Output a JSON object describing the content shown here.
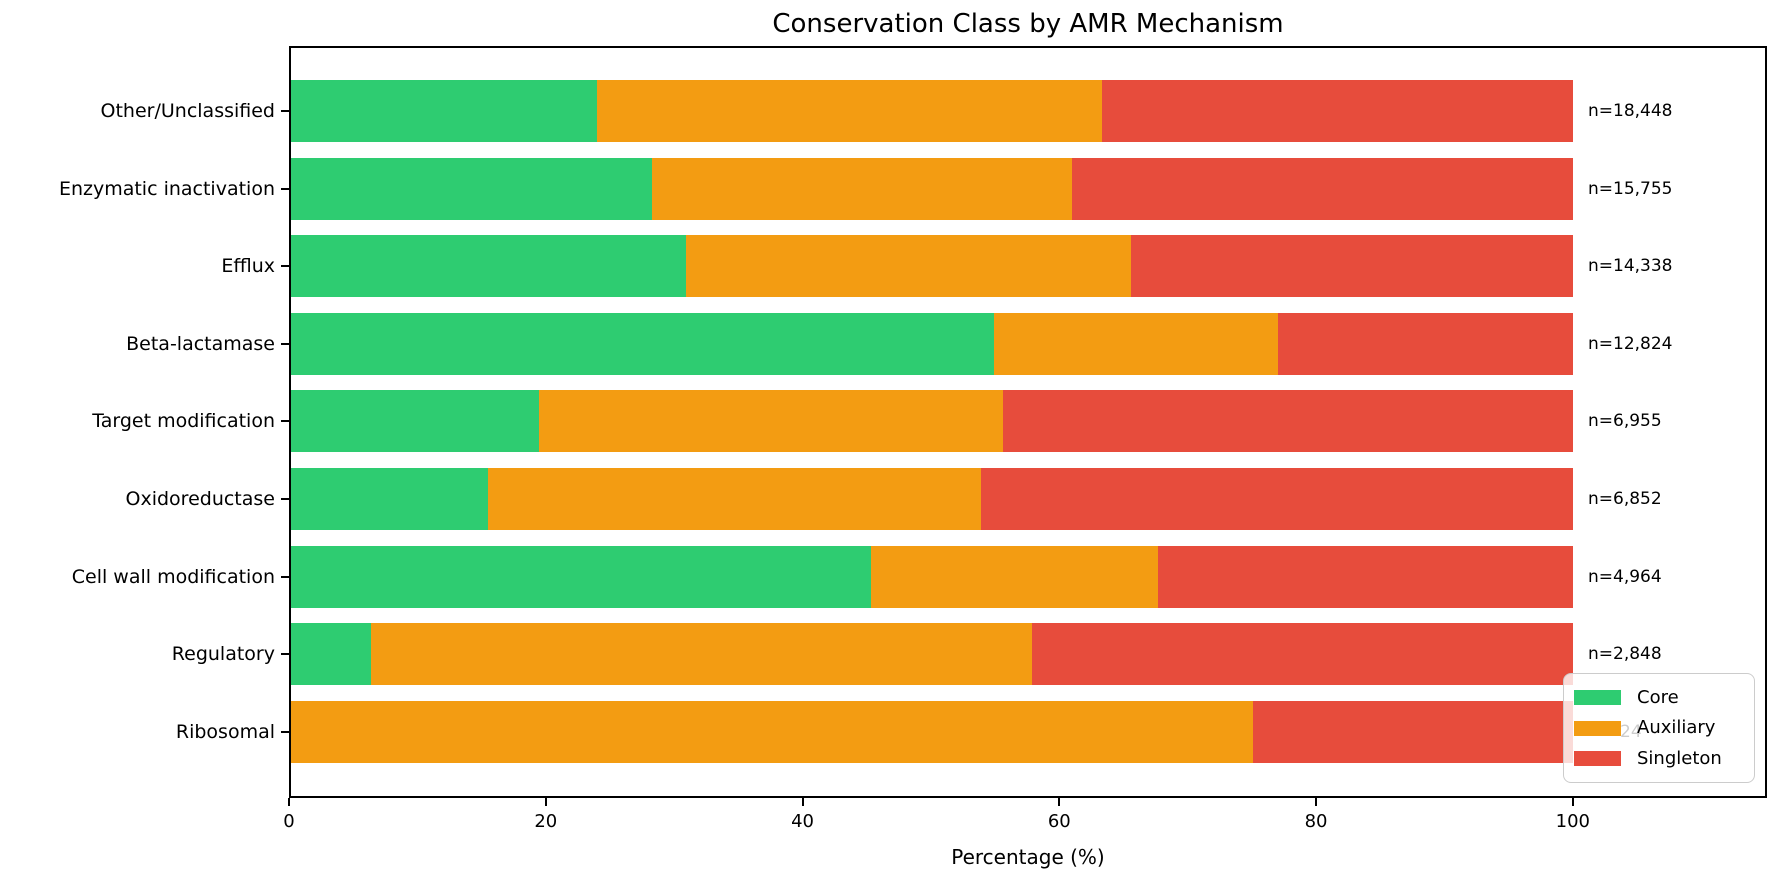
{
  "chart_data": {
    "type": "bar",
    "orientation": "horizontal",
    "stacked": true,
    "title": "Conservation Class by AMR Mechanism",
    "xlabel": "Percentage (%)",
    "ylabel": "",
    "xlim": [
      0,
      115
    ],
    "xticks": [
      "0",
      "20",
      "40",
      "60",
      "80",
      "100"
    ],
    "xtick_values": [
      0,
      20,
      40,
      60,
      80,
      100
    ],
    "grid": false,
    "legend_position": "lower-right-inside",
    "categories": [
      "Other/Unclassified",
      "Enzymatic inactivation",
      "Efflux",
      "Beta-lactamase",
      "Target modification",
      "Oxidoreductase",
      "Cell wall modification",
      "Regulatory",
      "Ribosomal"
    ],
    "series": [
      {
        "name": "Core",
        "color": "#2ecc71",
        "values": [
          24.0,
          28.3,
          30.9,
          54.9,
          19.5,
          15.5,
          45.3,
          6.4,
          0.0
        ]
      },
      {
        "name": "Auxiliary",
        "color": "#f39c12",
        "values": [
          39.3,
          32.7,
          34.7,
          22.1,
          36.1,
          38.4,
          22.4,
          51.5,
          75.1
        ]
      },
      {
        "name": "Singleton",
        "color": "#e74c3c",
        "values": [
          36.7,
          39.0,
          34.4,
          23.0,
          44.4,
          46.1,
          32.3,
          42.1,
          24.9
        ]
      }
    ],
    "n_labels": [
      "n=18,448",
      "n=15,755",
      "n=14,338",
      "n=12,824",
      "n=6,955",
      "n=6,852",
      "n=4,964",
      "n=2,848",
      "24"
    ]
  }
}
